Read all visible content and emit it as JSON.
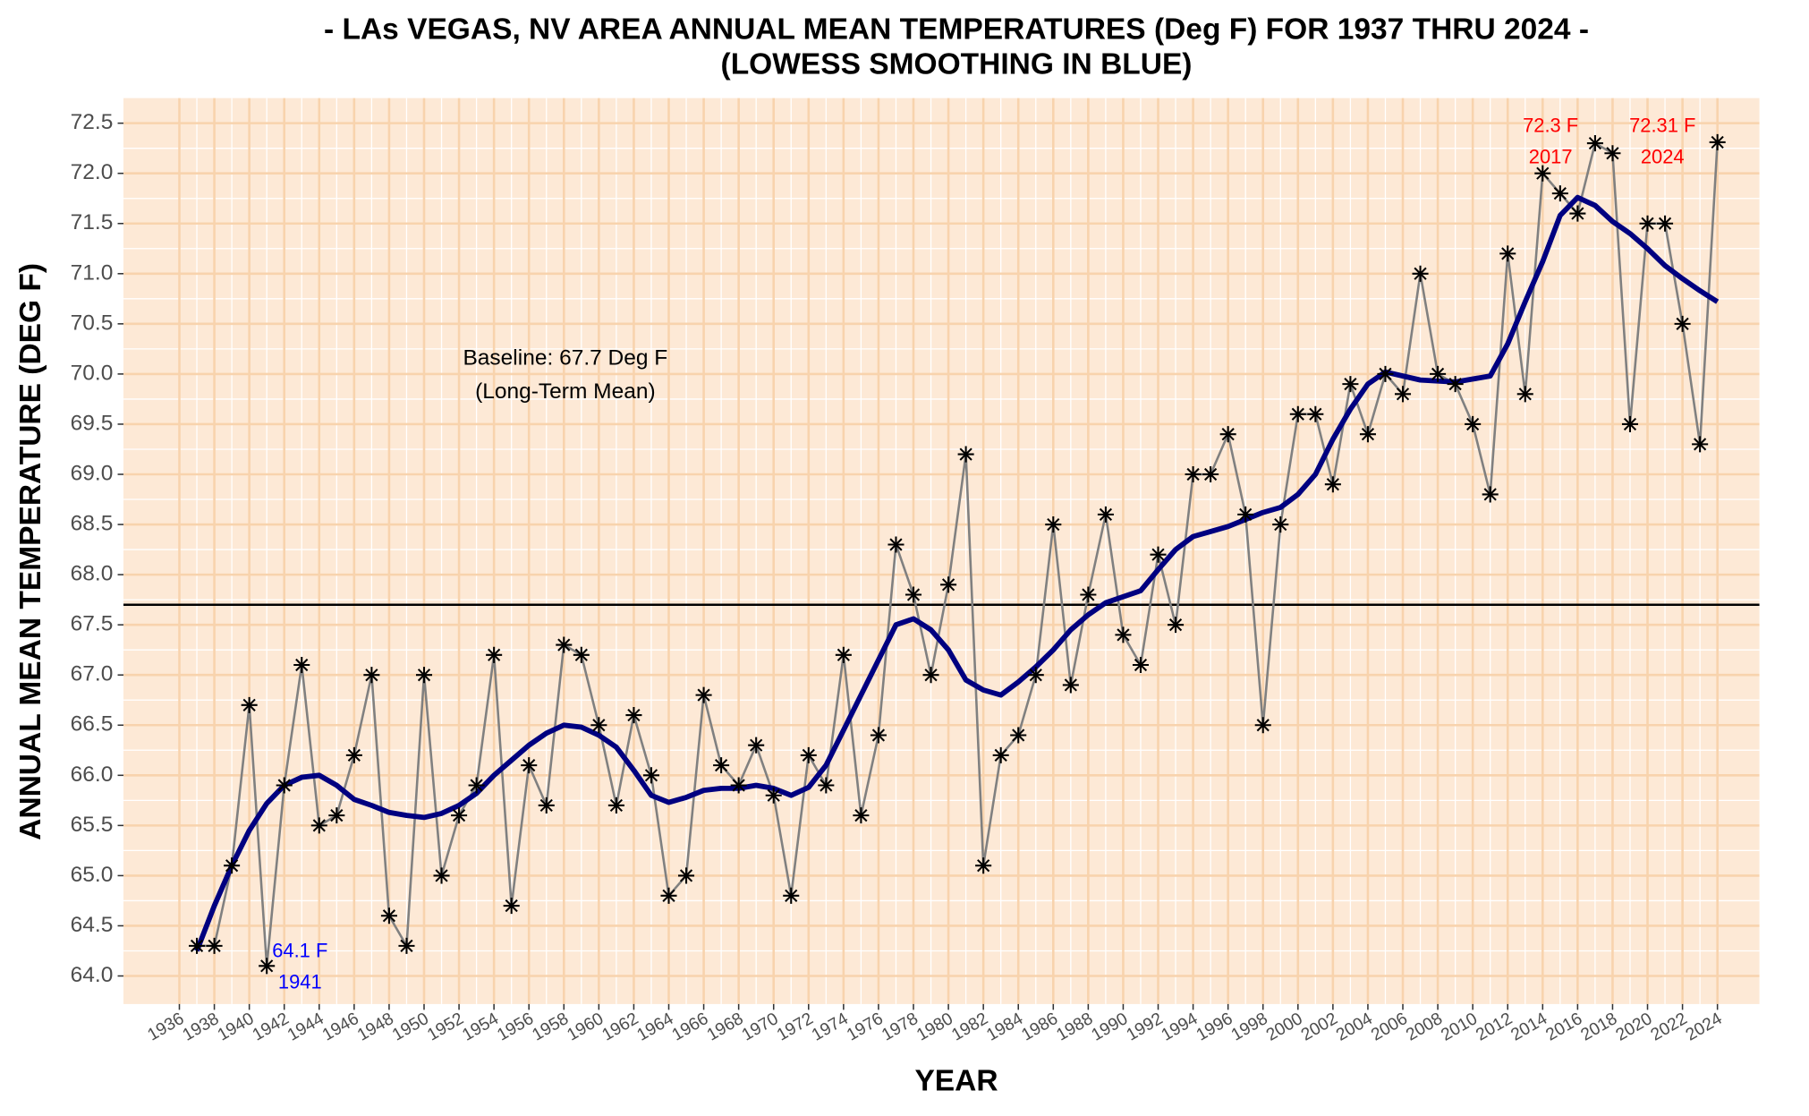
{
  "chart_data": {
    "type": "line",
    "title": "- LAs VEGAS, NV AREA ANNUAL MEAN TEMPERATURES (Deg F) FOR 1937 THRU 2024 -",
    "subtitle": "(LOWESS SMOOTHING IN BLUE)",
    "x_label": "YEAR",
    "y_label": "ANNUAL MEAN TEMPERATURE (DEG F)",
    "x": [
      1937,
      1938,
      1939,
      1940,
      1941,
      1942,
      1943,
      1944,
      1945,
      1946,
      1947,
      1948,
      1949,
      1950,
      1951,
      1952,
      1953,
      1954,
      1955,
      1956,
      1957,
      1958,
      1959,
      1960,
      1961,
      1962,
      1963,
      1964,
      1965,
      1966,
      1967,
      1968,
      1969,
      1970,
      1971,
      1972,
      1973,
      1974,
      1975,
      1976,
      1977,
      1978,
      1979,
      1980,
      1981,
      1982,
      1983,
      1984,
      1985,
      1986,
      1987,
      1988,
      1989,
      1990,
      1991,
      1992,
      1993,
      1994,
      1995,
      1996,
      1997,
      1998,
      1999,
      2000,
      2001,
      2002,
      2003,
      2004,
      2005,
      2006,
      2007,
      2008,
      2009,
      2010,
      2011,
      2012,
      2013,
      2014,
      2015,
      2016,
      2017,
      2018,
      2019,
      2020,
      2021,
      2022,
      2023,
      2024
    ],
    "series": [
      {
        "color": "#000000",
        "line_color": "#808080",
        "marker": "asterisk",
        "values": [
          64.3,
          64.3,
          65.1,
          66.7,
          64.1,
          65.9,
          67.1,
          65.5,
          65.6,
          66.2,
          67.0,
          64.6,
          64.3,
          67.0,
          65.0,
          65.6,
          65.9,
          67.2,
          64.7,
          66.1,
          65.7,
          67.3,
          67.2,
          66.5,
          65.7,
          66.6,
          66.0,
          64.8,
          65.0,
          66.8,
          66.1,
          65.9,
          66.3,
          65.8,
          64.8,
          66.2,
          65.9,
          67.2,
          65.6,
          66.4,
          68.3,
          67.8,
          67.0,
          67.9,
          69.2,
          65.1,
          66.2,
          66.4,
          67.0,
          68.5,
          66.9,
          67.8,
          68.6,
          67.4,
          67.1,
          68.2,
          67.5,
          69.0,
          69.0,
          69.4,
          68.6,
          66.5,
          68.5,
          69.6,
          69.6,
          68.9,
          69.9,
          69.4,
          70.0,
          69.8,
          71.0,
          70.0,
          69.9,
          69.5,
          68.8,
          71.2,
          69.8,
          72.0,
          71.8,
          71.6,
          72.3,
          72.2,
          69.5,
          71.5,
          71.5,
          70.5,
          69.3,
          72.31
        ]
      },
      {
        "color": "#000080",
        "marker": "none",
        "values": [
          64.25,
          64.7,
          65.1,
          65.45,
          65.72,
          65.9,
          65.98,
          66.0,
          65.9,
          65.76,
          65.7,
          65.63,
          65.6,
          65.58,
          65.62,
          65.7,
          65.82,
          66.0,
          66.15,
          66.3,
          66.42,
          66.5,
          66.48,
          66.4,
          66.28,
          66.05,
          65.8,
          65.73,
          65.78,
          65.85,
          65.87,
          65.87,
          65.9,
          65.87,
          65.8,
          65.88,
          66.1,
          66.45,
          66.8,
          67.15,
          67.5,
          67.56,
          67.45,
          67.25,
          66.95,
          66.85,
          66.8,
          66.93,
          67.08,
          67.25,
          67.45,
          67.6,
          67.72,
          67.78,
          67.84,
          68.05,
          68.25,
          68.38,
          68.43,
          68.48,
          68.55,
          68.62,
          68.67,
          68.8,
          69.0,
          69.35,
          69.65,
          69.9,
          70.02,
          69.98,
          69.94,
          69.93,
          69.92,
          69.95,
          69.98,
          70.3,
          70.72,
          71.12,
          71.58,
          71.76,
          71.68,
          71.52,
          71.4,
          71.25,
          71.08,
          70.95,
          70.83,
          70.72
        ]
      }
    ],
    "baseline": 67.7,
    "baseline_color": "#000000",
    "annotations": [
      {
        "lines": [
          "Baseline: 67.7 Deg F",
          "(Long-Term Mean)"
        ],
        "color": "#000000"
      },
      {
        "lines": [
          "64.1 F",
          "1941"
        ],
        "color": "#0000ff"
      },
      {
        "lines": [
          "72.3 F",
          "2017"
        ],
        "color": "#ff0000"
      },
      {
        "lines": [
          "72.31 F",
          "2024"
        ],
        "color": "#ff0000"
      }
    ],
    "xlim": [
      1932.8,
      2026.4
    ],
    "ylim": [
      63.72,
      72.75
    ],
    "xticks": [
      1936,
      1938,
      1940,
      1942,
      1944,
      1946,
      1948,
      1950,
      1952,
      1954,
      1956,
      1958,
      1960,
      1962,
      1964,
      1966,
      1968,
      1970,
      1972,
      1974,
      1976,
      1978,
      1980,
      1982,
      1984,
      1986,
      1988,
      1990,
      1992,
      1994,
      1996,
      1998,
      2000,
      2002,
      2004,
      2006,
      2008,
      2010,
      2012,
      2014,
      2016,
      2018,
      2020,
      2022,
      2024
    ],
    "yticks": [
      {
        "value": 64,
        "label": "64.0"
      },
      64.5,
      {
        "value": 65,
        "label": "65.0"
      },
      65.5,
      {
        "value": 66,
        "label": "66.0"
      },
      66.5,
      {
        "value": 67,
        "label": "67.0"
      },
      67.5,
      {
        "value": 68,
        "label": "68.0"
      },
      68.5,
      {
        "value": 69,
        "label": "69.0"
      },
      69.5,
      {
        "value": 70,
        "label": "70.0"
      },
      70.5,
      {
        "value": 71,
        "label": "71.0"
      },
      71.5,
      {
        "value": 72,
        "label": "72.0"
      },
      72.5
    ],
    "grid": true,
    "background": "#fde9d6",
    "grid_color": "#f8d3ad",
    "minor_grid_color": "#ffffff"
  }
}
